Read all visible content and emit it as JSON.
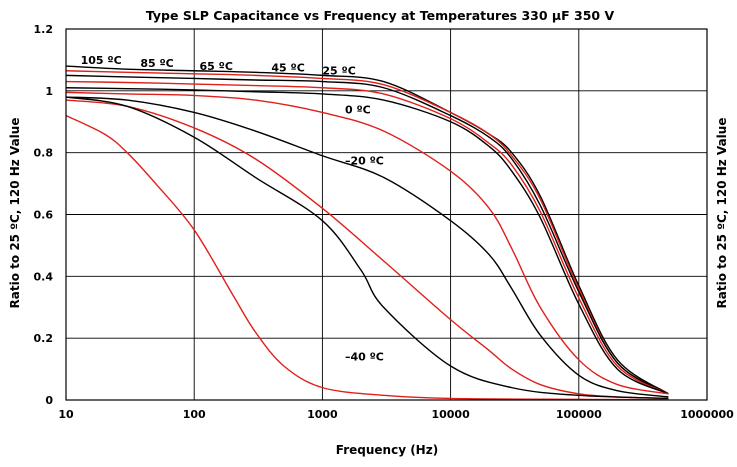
{
  "chart_data": {
    "type": "line",
    "title": "Type SLP Capacitance vs Frequency at Temperatures 330 µF 350 V",
    "xlabel": "Frequency (Hz)",
    "ylabel": "Ratio to 25 ºC, 120 Hz Value",
    "ylabel_right": "Ratio to 25 ºC, 120 Hz Value",
    "x_scale": "log",
    "xlim": [
      10,
      1000000
    ],
    "ylim": [
      0,
      1.2
    ],
    "x_ticks": [
      10,
      100,
      1000,
      10000,
      100000,
      1000000
    ],
    "x_tick_labels": [
      "10",
      "100",
      "1000",
      "10000",
      "100000",
      "1000000"
    ],
    "y_ticks": [
      0,
      0.2,
      0.4,
      0.6,
      0.8,
      1.0,
      1.2
    ],
    "y_tick_labels": [
      "0",
      "0.2",
      "0.4",
      "0.6",
      "0.8",
      "1",
      "1.2"
    ],
    "grid": true,
    "colors": {
      "black": "#000000",
      "red": "#e0201b",
      "grid": "#000000"
    },
    "series": [
      {
        "name": "105 ºC",
        "color": "#000000",
        "x": [
          10,
          30,
          100,
          300,
          1000,
          3000,
          10000,
          20000,
          30000,
          50000,
          100000,
          200000,
          500000
        ],
        "y": [
          1.08,
          1.07,
          1.065,
          1.06,
          1.05,
          1.03,
          0.93,
          0.86,
          0.8,
          0.66,
          0.37,
          0.13,
          0.02
        ]
      },
      {
        "name": "85 ºC",
        "color": "#e0201b",
        "x": [
          10,
          30,
          100,
          300,
          1000,
          3000,
          10000,
          20000,
          30000,
          50000,
          100000,
          200000,
          500000
        ],
        "y": [
          1.065,
          1.06,
          1.055,
          1.05,
          1.04,
          1.02,
          0.93,
          0.86,
          0.79,
          0.65,
          0.36,
          0.12,
          0.02
        ]
      },
      {
        "name": "65 ºC",
        "color": "#000000",
        "x": [
          10,
          30,
          100,
          300,
          1000,
          3000,
          10000,
          20000,
          30000,
          50000,
          100000,
          200000,
          500000
        ],
        "y": [
          1.05,
          1.045,
          1.04,
          1.035,
          1.03,
          1.01,
          0.92,
          0.85,
          0.78,
          0.63,
          0.35,
          0.12,
          0.02
        ]
      },
      {
        "name": "45 ºC",
        "color": "#e0201b",
        "x": [
          10,
          30,
          100,
          300,
          1000,
          3000,
          10000,
          20000,
          30000,
          50000,
          100000,
          200000,
          500000
        ],
        "y": [
          1.03,
          1.027,
          1.022,
          1.017,
          1.01,
          0.99,
          0.91,
          0.83,
          0.76,
          0.61,
          0.33,
          0.11,
          0.02
        ]
      },
      {
        "name": "25 ºC",
        "color": "#000000",
        "x": [
          10,
          30,
          100,
          300,
          1000,
          3000,
          10000,
          20000,
          30000,
          50000,
          100000,
          200000,
          500000
        ],
        "y": [
          1.01,
          1.007,
          1.003,
          0.997,
          0.99,
          0.97,
          0.9,
          0.82,
          0.74,
          0.59,
          0.31,
          0.1,
          0.02
        ]
      },
      {
        "name": "0 ºC",
        "color": "#e0201b",
        "x": [
          10,
          30,
          100,
          300,
          1000,
          3000,
          10000,
          20000,
          30000,
          50000,
          100000,
          200000,
          500000
        ],
        "y": [
          0.995,
          0.99,
          0.985,
          0.97,
          0.93,
          0.87,
          0.74,
          0.62,
          0.49,
          0.3,
          0.13,
          0.05,
          0.02
        ]
      },
      {
        "name": "–20 ºC",
        "color": "#000000",
        "x": [
          10,
          30,
          100,
          300,
          1000,
          3000,
          10000,
          20000,
          30000,
          50000,
          100000,
          200000,
          500000
        ],
        "y": [
          0.98,
          0.97,
          0.93,
          0.87,
          0.79,
          0.72,
          0.58,
          0.47,
          0.36,
          0.21,
          0.08,
          0.03,
          0.01
        ]
      },
      {
        "name": "–40 ºC",
        "color": "#e0201b",
        "x": [
          10,
          30,
          100,
          300,
          1000,
          3000,
          10000,
          20000,
          30000,
          50000,
          100000,
          200000,
          500000
        ],
        "y": [
          0.97,
          0.95,
          0.88,
          0.78,
          0.62,
          0.45,
          0.26,
          0.16,
          0.1,
          0.05,
          0.02,
          0.01,
          0.005
        ]
      },
      {
        "name": "",
        "color": "#000000",
        "x": [
          10,
          30,
          100,
          300,
          1000,
          2000,
          3000,
          10000,
          30000,
          100000,
          500000
        ],
        "y": [
          0.98,
          0.95,
          0.85,
          0.72,
          0.58,
          0.42,
          0.3,
          0.11,
          0.04,
          0.015,
          0.005
        ]
      },
      {
        "name": "",
        "color": "#e0201b",
        "x": [
          10,
          20,
          30,
          50,
          100,
          200,
          300,
          500,
          1000,
          3000,
          10000,
          100000,
          500000
        ],
        "y": [
          0.92,
          0.86,
          0.8,
          0.7,
          0.55,
          0.34,
          0.22,
          0.11,
          0.04,
          0.015,
          0.005,
          0.002,
          0.001
        ]
      }
    ],
    "annotations": [
      {
        "text": "105 ºC",
        "x": 13,
        "y": 1.1
      },
      {
        "text": "85 ºC",
        "x": 38,
        "y": 1.09
      },
      {
        "text": "65 ºC",
        "x": 110,
        "y": 1.08
      },
      {
        "text": "45 ºC",
        "x": 400,
        "y": 1.075
      },
      {
        "text": "25 ºC",
        "x": 1000,
        "y": 1.065
      },
      {
        "text": "0 ºC",
        "x": 1500,
        "y": 0.94
      },
      {
        "text": "–20 ºC",
        "x": 1500,
        "y": 0.775
      },
      {
        "text": "–40 ºC",
        "x": 1500,
        "y": 0.14
      }
    ]
  }
}
